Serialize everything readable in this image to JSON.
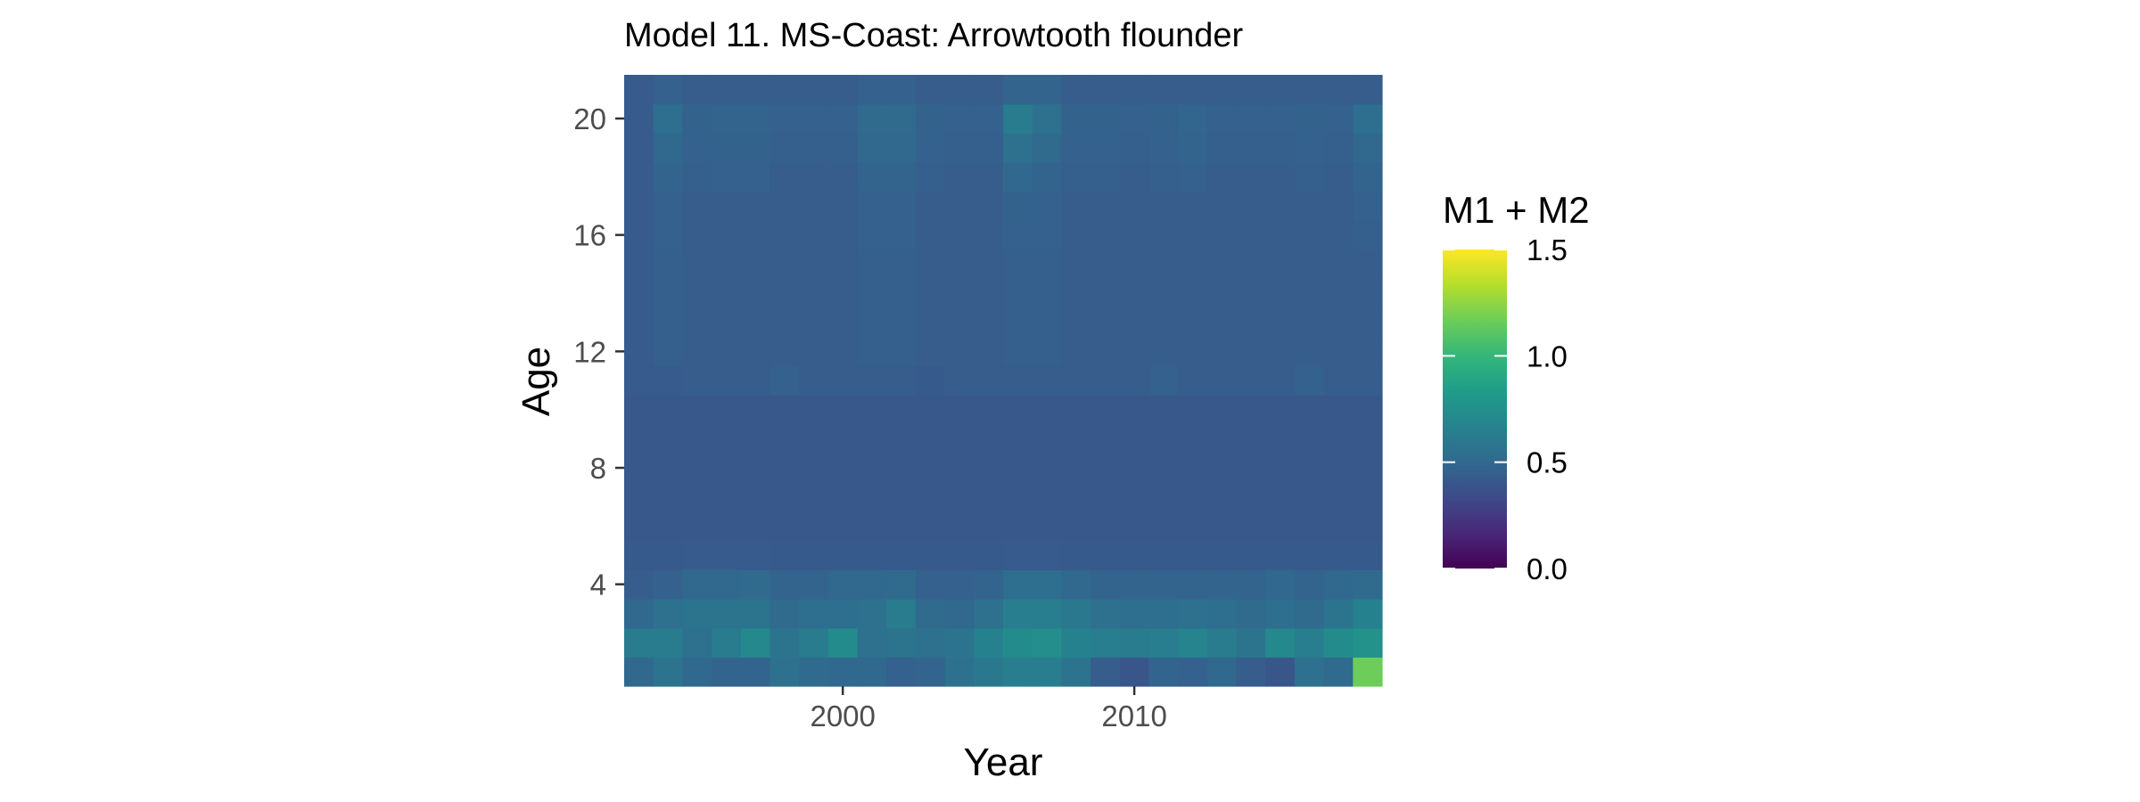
{
  "chart_data": {
    "type": "heatmap",
    "title": "Model 11. MS-Coast: Arrowtooth flounder",
    "xlabel": "Year",
    "ylabel": "Age",
    "x": [
      1993,
      1994,
      1995,
      1996,
      1997,
      1998,
      1999,
      2000,
      2001,
      2002,
      2003,
      2004,
      2005,
      2006,
      2007,
      2008,
      2009,
      2010,
      2011,
      2012,
      2013,
      2014,
      2015,
      2016,
      2017,
      2018
    ],
    "y": [
      1,
      2,
      3,
      4,
      5,
      6,
      7,
      8,
      9,
      10,
      11,
      12,
      13,
      14,
      15,
      16,
      17,
      18,
      19,
      20,
      21
    ],
    "x_ticks": [
      2000,
      2010
    ],
    "x_tick_labels": [
      "2000",
      "2010"
    ],
    "y_ticks": [
      4,
      8,
      12,
      16,
      20
    ],
    "y_tick_labels": [
      "4",
      "8",
      "12",
      "16",
      "20"
    ],
    "xlim": [
      1992.5,
      2018.5
    ],
    "ylim": [
      0.5,
      21.5
    ],
    "rows": {
      "age_1": [
        0.5,
        0.58,
        0.5,
        0.48,
        0.48,
        0.56,
        0.52,
        0.5,
        0.5,
        0.46,
        0.48,
        0.56,
        0.6,
        0.64,
        0.64,
        0.58,
        0.44,
        0.4,
        0.48,
        0.46,
        0.5,
        0.44,
        0.4,
        0.56,
        0.52,
        1.16
      ],
      "age_2": [
        0.62,
        0.62,
        0.56,
        0.62,
        0.7,
        0.58,
        0.62,
        0.72,
        0.56,
        0.58,
        0.56,
        0.58,
        0.66,
        0.72,
        0.74,
        0.66,
        0.64,
        0.62,
        0.64,
        0.68,
        0.62,
        0.58,
        0.7,
        0.64,
        0.72,
        0.76
      ],
      "age_3": [
        0.5,
        0.56,
        0.58,
        0.58,
        0.58,
        0.52,
        0.54,
        0.54,
        0.56,
        0.62,
        0.52,
        0.5,
        0.56,
        0.64,
        0.64,
        0.6,
        0.56,
        0.54,
        0.54,
        0.56,
        0.54,
        0.52,
        0.54,
        0.52,
        0.58,
        0.66
      ],
      "age_4": [
        0.44,
        0.46,
        0.5,
        0.5,
        0.52,
        0.48,
        0.48,
        0.5,
        0.5,
        0.52,
        0.46,
        0.46,
        0.48,
        0.54,
        0.54,
        0.5,
        0.48,
        0.48,
        0.48,
        0.48,
        0.48,
        0.48,
        0.5,
        0.48,
        0.5,
        0.52
      ],
      "age_5": [
        0.42,
        0.42,
        0.43,
        0.43,
        0.43,
        0.42,
        0.42,
        0.42,
        0.42,
        0.42,
        0.42,
        0.42,
        0.42,
        0.43,
        0.43,
        0.42,
        0.42,
        0.42,
        0.42,
        0.42,
        0.42,
        0.42,
        0.42,
        0.42,
        0.42,
        0.42
      ],
      "age_6": [
        0.41,
        0.41,
        0.41,
        0.41,
        0.41,
        0.41,
        0.41,
        0.41,
        0.41,
        0.41,
        0.41,
        0.41,
        0.41,
        0.41,
        0.41,
        0.41,
        0.41,
        0.41,
        0.41,
        0.41,
        0.41,
        0.41,
        0.41,
        0.41,
        0.41,
        0.41
      ],
      "age_7": [
        0.41,
        0.41,
        0.41,
        0.41,
        0.41,
        0.41,
        0.41,
        0.41,
        0.41,
        0.41,
        0.41,
        0.41,
        0.41,
        0.41,
        0.41,
        0.41,
        0.41,
        0.41,
        0.41,
        0.41,
        0.41,
        0.41,
        0.41,
        0.41,
        0.41,
        0.41
      ],
      "age_8": [
        0.41,
        0.41,
        0.41,
        0.41,
        0.41,
        0.41,
        0.41,
        0.41,
        0.41,
        0.41,
        0.41,
        0.41,
        0.41,
        0.41,
        0.41,
        0.41,
        0.41,
        0.41,
        0.41,
        0.41,
        0.41,
        0.41,
        0.41,
        0.41,
        0.41,
        0.41
      ],
      "age_9": [
        0.41,
        0.41,
        0.41,
        0.41,
        0.41,
        0.41,
        0.41,
        0.41,
        0.41,
        0.41,
        0.41,
        0.41,
        0.41,
        0.41,
        0.41,
        0.41,
        0.41,
        0.41,
        0.41,
        0.41,
        0.41,
        0.41,
        0.41,
        0.41,
        0.41,
        0.41
      ],
      "age_10": [
        0.41,
        0.41,
        0.41,
        0.41,
        0.41,
        0.41,
        0.41,
        0.41,
        0.41,
        0.41,
        0.41,
        0.41,
        0.41,
        0.41,
        0.41,
        0.41,
        0.41,
        0.41,
        0.41,
        0.41,
        0.41,
        0.41,
        0.41,
        0.41,
        0.41,
        0.41
      ],
      "age_11": [
        0.43,
        0.43,
        0.44,
        0.44,
        0.44,
        0.46,
        0.44,
        0.44,
        0.44,
        0.44,
        0.42,
        0.44,
        0.44,
        0.44,
        0.44,
        0.44,
        0.44,
        0.44,
        0.46,
        0.44,
        0.44,
        0.44,
        0.44,
        0.46,
        0.44,
        0.44
      ],
      "age_12": [
        0.43,
        0.45,
        0.44,
        0.44,
        0.44,
        0.44,
        0.44,
        0.44,
        0.45,
        0.45,
        0.44,
        0.44,
        0.44,
        0.45,
        0.45,
        0.44,
        0.44,
        0.44,
        0.44,
        0.44,
        0.44,
        0.44,
        0.44,
        0.44,
        0.44,
        0.44
      ],
      "age_13": [
        0.43,
        0.45,
        0.44,
        0.44,
        0.44,
        0.44,
        0.44,
        0.44,
        0.45,
        0.45,
        0.44,
        0.44,
        0.44,
        0.45,
        0.45,
        0.44,
        0.44,
        0.44,
        0.44,
        0.44,
        0.44,
        0.44,
        0.44,
        0.44,
        0.44,
        0.44
      ],
      "age_14": [
        0.43,
        0.45,
        0.44,
        0.44,
        0.44,
        0.44,
        0.44,
        0.44,
        0.45,
        0.45,
        0.44,
        0.44,
        0.44,
        0.45,
        0.45,
        0.44,
        0.44,
        0.44,
        0.44,
        0.44,
        0.44,
        0.44,
        0.44,
        0.44,
        0.44,
        0.44
      ],
      "age_15": [
        0.43,
        0.45,
        0.44,
        0.44,
        0.44,
        0.44,
        0.44,
        0.44,
        0.45,
        0.45,
        0.44,
        0.44,
        0.44,
        0.45,
        0.45,
        0.44,
        0.44,
        0.44,
        0.44,
        0.44,
        0.44,
        0.44,
        0.44,
        0.44,
        0.44,
        0.44
      ],
      "age_16": [
        0.43,
        0.46,
        0.44,
        0.44,
        0.44,
        0.44,
        0.44,
        0.44,
        0.46,
        0.46,
        0.44,
        0.44,
        0.44,
        0.46,
        0.46,
        0.44,
        0.44,
        0.44,
        0.44,
        0.44,
        0.44,
        0.44,
        0.44,
        0.44,
        0.44,
        0.45
      ],
      "age_17": [
        0.43,
        0.46,
        0.44,
        0.44,
        0.44,
        0.44,
        0.44,
        0.44,
        0.46,
        0.46,
        0.44,
        0.44,
        0.44,
        0.47,
        0.46,
        0.44,
        0.44,
        0.44,
        0.44,
        0.44,
        0.44,
        0.44,
        0.44,
        0.44,
        0.44,
        0.46
      ],
      "age_18": [
        0.43,
        0.48,
        0.45,
        0.46,
        0.46,
        0.44,
        0.44,
        0.44,
        0.48,
        0.48,
        0.45,
        0.44,
        0.44,
        0.5,
        0.48,
        0.45,
        0.45,
        0.44,
        0.45,
        0.46,
        0.44,
        0.44,
        0.44,
        0.45,
        0.44,
        0.48
      ],
      "age_19": [
        0.43,
        0.5,
        0.46,
        0.47,
        0.47,
        0.45,
        0.45,
        0.45,
        0.5,
        0.5,
        0.46,
        0.45,
        0.45,
        0.56,
        0.52,
        0.46,
        0.46,
        0.45,
        0.46,
        0.48,
        0.45,
        0.45,
        0.45,
        0.46,
        0.45,
        0.5
      ],
      "age_20": [
        0.43,
        0.54,
        0.47,
        0.48,
        0.48,
        0.46,
        0.46,
        0.46,
        0.52,
        0.52,
        0.47,
        0.46,
        0.46,
        0.62,
        0.56,
        0.47,
        0.47,
        0.46,
        0.47,
        0.49,
        0.46,
        0.46,
        0.46,
        0.47,
        0.46,
        0.54
      ],
      "age_21": [
        0.43,
        0.46,
        0.44,
        0.44,
        0.44,
        0.44,
        0.44,
        0.44,
        0.46,
        0.46,
        0.44,
        0.44,
        0.44,
        0.48,
        0.48,
        0.44,
        0.44,
        0.44,
        0.44,
        0.44,
        0.44,
        0.44,
        0.44,
        0.44,
        0.44,
        0.44
      ]
    },
    "legend": {
      "title": "M1 + M2",
      "position": "right",
      "colormap": "viridis",
      "limits": [
        0.0,
        1.5
      ],
      "ticks": [
        0.0,
        0.5,
        1.0,
        1.5
      ],
      "tick_labels": [
        "0.0",
        "0.5",
        "1.0",
        "1.5"
      ]
    },
    "grid": false
  }
}
